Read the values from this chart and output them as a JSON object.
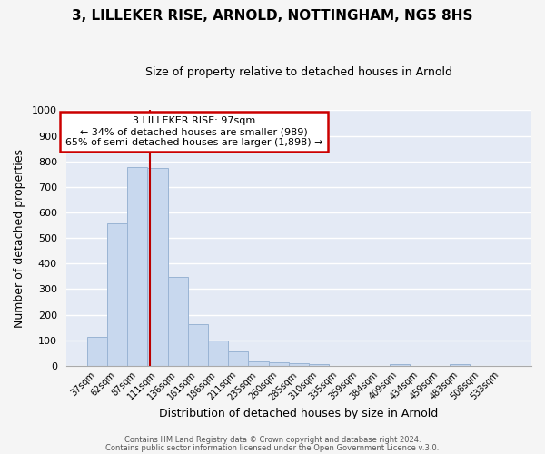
{
  "title1": "3, LILLEKER RISE, ARNOLD, NOTTINGHAM, NG5 8HS",
  "title2": "Size of property relative to detached houses in Arnold",
  "xlabel": "Distribution of detached houses by size in Arnold",
  "ylabel": "Number of detached properties",
  "bar_labels": [
    "37sqm",
    "62sqm",
    "87sqm",
    "111sqm",
    "136sqm",
    "161sqm",
    "186sqm",
    "211sqm",
    "235sqm",
    "260sqm",
    "285sqm",
    "310sqm",
    "335sqm",
    "359sqm",
    "384sqm",
    "409sqm",
    "434sqm",
    "459sqm",
    "483sqm",
    "508sqm",
    "533sqm"
  ],
  "bar_values": [
    113,
    557,
    778,
    775,
    347,
    163,
    97,
    55,
    17,
    15,
    10,
    5,
    0,
    0,
    0,
    7,
    0,
    0,
    7,
    0,
    0
  ],
  "bar_color": "#c8d8ee",
  "bar_edgecolor": "#9ab4d4",
  "vline_x": 2.6,
  "vline_color": "#bb0000",
  "ylim": [
    0,
    1000
  ],
  "yticks": [
    0,
    100,
    200,
    300,
    400,
    500,
    600,
    700,
    800,
    900,
    1000
  ],
  "annotation_title": "3 LILLEKER RISE: 97sqm",
  "annotation_line1": "← 34% of detached houses are smaller (989)",
  "annotation_line2": "65% of semi-detached houses are larger (1,898) →",
  "annotation_box_edgecolor": "#cc0000",
  "footer1": "Contains HM Land Registry data © Crown copyright and database right 2024.",
  "footer2": "Contains public sector information licensed under the Open Government Licence v.3.0.",
  "fig_bg_color": "#f5f5f5",
  "plot_bg_color": "#e4eaf5",
  "grid_color": "#ffffff",
  "title_color": "#000000"
}
